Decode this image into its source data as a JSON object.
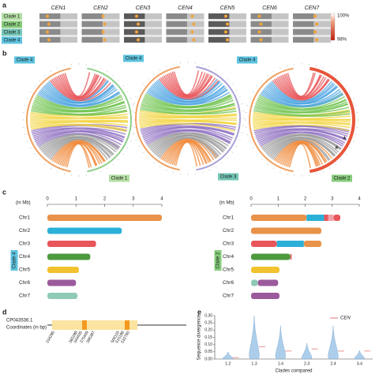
{
  "panel_labels": [
    "a",
    "b",
    "c",
    "d",
    "e"
  ],
  "panel_a": {
    "centromeres": [
      "CEN1",
      "CEN2",
      "CEN3",
      "CEN4",
      "CEN5",
      "CEN6",
      "CEN7"
    ],
    "clades": [
      {
        "name": "Clade 1",
        "color": "#b3dea3"
      },
      {
        "name": "Clade 2",
        "color": "#86cc7c"
      },
      {
        "name": "Clade 3",
        "color": "#74c6b6"
      },
      {
        "name": "Clade 4",
        "color": "#5cc3df"
      }
    ],
    "scale_labels": [
      "100%",
      "98%"
    ]
  },
  "panel_b": {
    "plots": [
      {
        "labels": [
          "Clade 4",
          "Clade 1"
        ],
        "ring_color": "#8fd08a"
      },
      {
        "labels": [
          "Clade 4",
          "Clade 3"
        ],
        "ring_color": "#a9a0d6"
      },
      {
        "labels": [
          "Clade 4",
          "Clade 2"
        ],
        "ring_color": "#e8553a",
        "annotations": [
          "*",
          "*"
        ]
      }
    ]
  },
  "panel_c": {
    "unit_label": "(in Mb)",
    "xlim": [
      0,
      4
    ],
    "xticks": [
      0,
      1,
      2,
      3,
      4
    ],
    "genomes": [
      {
        "clade": "Clade 4",
        "chromosomes": [
          {
            "name": "Chr1",
            "segments": [
              {
                "color": "#e8924a",
                "length": 4.0
              }
            ]
          },
          {
            "name": "Chr2",
            "segments": [
              {
                "color": "#2bb0d8",
                "length": 2.6
              }
            ]
          },
          {
            "name": "Chr3",
            "segments": [
              {
                "color": "#e8555a",
                "length": 1.7
              }
            ]
          },
          {
            "name": "Chr4",
            "segments": [
              {
                "color": "#4e9a3e",
                "length": 1.5
              }
            ]
          },
          {
            "name": "Chr5",
            "segments": [
              {
                "color": "#f2c12e",
                "length": 1.1
              }
            ]
          },
          {
            "name": "Chr6",
            "segments": [
              {
                "color": "#9b5a9b",
                "length": 1.0
              }
            ]
          },
          {
            "name": "Chr7",
            "segments": [
              {
                "color": "#8fc9b8",
                "length": 1.05
              }
            ]
          }
        ]
      },
      {
        "clade": "Clade 2",
        "chromosomes": [
          {
            "name": "Chr1",
            "segments": [
              {
                "color": "#e8924a",
                "length": 2.05
              },
              {
                "color": "#2bb0d8",
                "length": 0.65
              },
              {
                "color": "#e8555a",
                "length": 0.15
              },
              {
                "color": "#f2a0a8",
                "length": 0.2
              },
              {
                "color": "#e8555a",
                "length": 0.25
              }
            ]
          },
          {
            "name": "Chr2",
            "segments": [
              {
                "color": "#e8924a",
                "length": 2.6
              }
            ]
          },
          {
            "name": "Chr3",
            "segments": [
              {
                "color": "#e8555a",
                "length": 0.95
              },
              {
                "color": "#2bb0d8",
                "length": 1.0
              },
              {
                "color": "#e8924a",
                "length": 0.65
              }
            ]
          },
          {
            "name": "Chr4",
            "segments": [
              {
                "color": "#4e9a3e",
                "length": 1.45
              },
              {
                "color": "#e8555a",
                "length": 0.05
              }
            ]
          },
          {
            "name": "Chr5",
            "segments": [
              {
                "color": "#f2c12e",
                "length": 1.05
              }
            ]
          },
          {
            "name": "Chr6",
            "segments": [
              {
                "color": "#8fc9b8",
                "length": 0.25
              },
              {
                "color": "#9b5a9b",
                "length": 0.75
              }
            ]
          },
          {
            "name": "Chr7",
            "segments": [
              {
                "color": "#9b5a9b",
                "length": 1.05
              }
            ]
          }
        ]
      }
    ]
  },
  "panel_d": {
    "accession": "CP043536.1",
    "axis_label": "Coordinates (in bp)",
    "coordinates": [
      234285,
      360288,
      344435,
      375449,
      396387,
      506116,
      515188,
      532760
    ]
  },
  "panel_e": {
    "type": "violin",
    "ylabel": "Sequence divergence",
    "xlabel": "Clades compared",
    "legend": "CEN",
    "cen_color": "#e05050",
    "categories": [
      "1-2",
      "1-3",
      "1-4",
      "2-3",
      "2-4",
      "3-4"
    ],
    "ylim": [
      0,
      0.3
    ],
    "yticks": [
      {
        "value": 0,
        "label": "0.00"
      },
      {
        "value": 0.05,
        "label": "0.05"
      },
      {
        "value": 0.1,
        "label": "0.10"
      },
      {
        "value": 0.15,
        "label": "0.15"
      },
      {
        "value": 0.2,
        "label": "0.20"
      },
      {
        "value": 0.25,
        "label": "0.25"
      },
      {
        "value": 0.3,
        "label": "0.30"
      }
    ],
    "max": [
      0.05,
      0.3,
      0.23,
      0.11,
      0.23,
      0.06
    ],
    "cen": [
      0.01,
      0.085,
      0.055,
      0.07,
      0.055,
      0.055
    ]
  }
}
